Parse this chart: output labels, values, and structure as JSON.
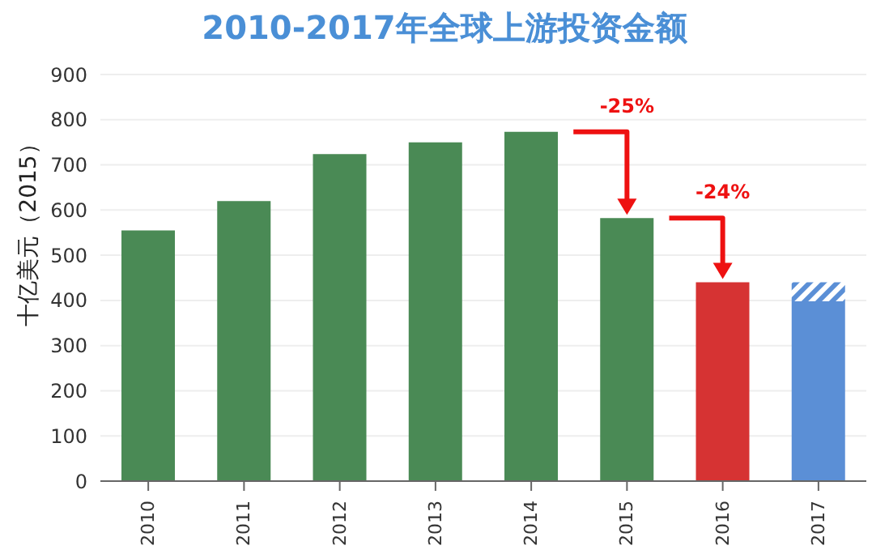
{
  "chart_data": {
    "type": "bar",
    "title": "2010-2017年全球上游投资金额",
    "ylabel": "十亿美元（2015）",
    "categories": [
      "2010",
      "2011",
      "2012",
      "2013",
      "2014",
      "2015",
      "2016",
      "2017"
    ],
    "series": [
      {
        "colors": [
          "#4a8a55",
          "#4a8a55",
          "#4a8a55",
          "#4a8a55",
          "#4a8a55",
          "#4a8a55",
          "#d63333",
          "#5b8fd6"
        ],
        "values": [
          555,
          620,
          724,
          750,
          773,
          582,
          440,
          398
        ]
      },
      {
        "color": "#5b8fd6",
        "values": [
          null,
          null,
          null,
          null,
          null,
          null,
          null,
          42
        ]
      }
    ],
    "stacked": true,
    "ylim": [
      0,
      900
    ],
    "yticks": [
      0,
      100,
      200,
      300,
      400,
      500,
      600,
      700,
      800,
      900
    ],
    "grid": "y",
    "annotations": [
      "-25%",
      "-24%"
    ]
  }
}
